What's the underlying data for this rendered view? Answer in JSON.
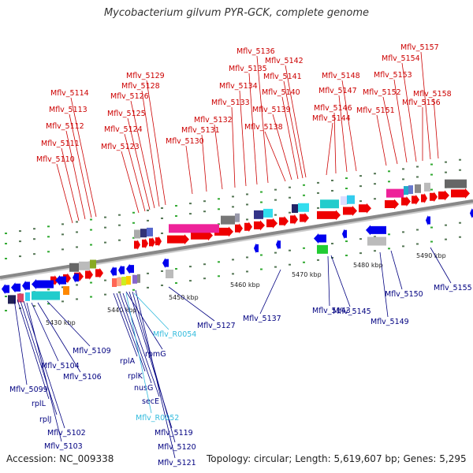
{
  "title": "Mycobacterium gilvum PYR-GCK, complete genome",
  "footer": {
    "accession": "Accession: NC_009338",
    "topology": "Topology: circular; Length: 5,619,607 bp; Genes: 5,295"
  },
  "colors": {
    "upper_strand_labels": "#cc0000",
    "lower_strand_labels": "#000080",
    "rna_labels": "#33bbdd",
    "upper_gene": "#ee0000",
    "lower_gene": "#0000ee",
    "backbone": "#888888"
  },
  "scale_ticks": [
    "5430 kbp",
    "5440 kbp",
    "5450 kbp",
    "5460 kbp",
    "5470 kbp",
    "5480 kbp",
    "5490 kbp"
  ],
  "upper_genes": [
    "Mflv_5110",
    "Mflv_5111",
    "Mflv_5112",
    "Mflv_5113",
    "Mflv_5114",
    "Mflv_5123",
    "Mflv_5124",
    "Mflv_5125",
    "Mflv_5126",
    "Mflv_5128",
    "Mflv_5129",
    "Mflv_5130",
    "Mflv_5131",
    "Mflv_5132",
    "Mflv_5133",
    "Mflv_5134",
    "Mflv_5135",
    "Mflv_5136",
    "Mflv_5138",
    "Mflv_5139",
    "Mflv_5140",
    "Mflv_5141",
    "Mflv_5142",
    "Mflv_5144",
    "Mflv_5146",
    "Mflv_5147",
    "Mflv_5148",
    "Mflv_5151",
    "Mflv_5152",
    "Mflv_5153",
    "Mflv_5154",
    "Mflv_5156",
    "Mflv_5157",
    "Mflv_5158"
  ],
  "lower_genes": [
    "Mflv_5099",
    "rplL",
    "rplJ",
    "Mflv_5102",
    "Mflv_5103",
    "Mflv_5104",
    "Mflv_5106",
    "Mflv_5109",
    "rplA",
    "rplK",
    "nusG",
    "secE",
    "rpmG",
    "Mflv_5119",
    "Mflv_5120",
    "Mflv_5121",
    "Mflv_5127",
    "Mflv_5137",
    "Mflv_5143",
    "Mflv_5145",
    "Mflv_5149",
    "Mflv_5150",
    "Mflv_5155"
  ],
  "rna_genes": [
    "Mflv_R0054",
    "Mflv_R0052"
  ]
}
